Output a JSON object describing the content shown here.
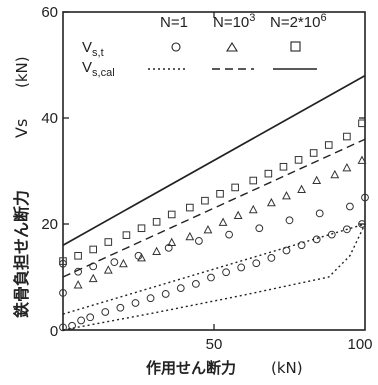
{
  "chart_data": {
    "type": "scatter",
    "xlabel": "作用せん断力",
    "xunit": "(kN)",
    "ylabel_jp": "鉄骨負担せん断力",
    "ylabel_sym": "Vs",
    "yunit": "(kN)",
    "xlim": [
      0,
      100
    ],
    "ylim": [
      0,
      60
    ],
    "xticks": [
      "0",
      "50",
      "100"
    ],
    "yticks": [
      "0",
      "20",
      "40",
      "60"
    ],
    "grid": false,
    "legend": {
      "columns": [
        "N=1",
        "N=10",
        "N=2*10"
      ],
      "column_exponents": [
        "",
        "3",
        "6"
      ],
      "row_labels": [
        "V",
        "V"
      ],
      "row_subscripts": [
        "s,t",
        "s,cal"
      ],
      "markers": [
        "circle",
        "triangle",
        "square"
      ],
      "line_styles": [
        "dotted",
        "dashed",
        "solid"
      ],
      "placement": "top"
    },
    "series": [
      {
        "name": "N=1",
        "kind": "points",
        "marker": "circle",
        "points": [
          [
            0,
            0.5
          ],
          [
            3,
            0.8
          ],
          [
            6,
            1.8
          ],
          [
            9,
            2.4
          ],
          [
            14,
            3.4
          ],
          [
            19,
            4.2
          ],
          [
            24,
            5.1
          ],
          [
            29,
            6
          ],
          [
            34,
            6.8
          ],
          [
            39,
            7.9
          ],
          [
            44,
            8.7
          ],
          [
            49,
            9.9
          ],
          [
            54,
            10.9
          ],
          [
            59,
            11.8
          ],
          [
            64,
            12.6
          ],
          [
            69,
            13.6
          ],
          [
            74,
            15
          ],
          [
            79,
            16
          ],
          [
            84,
            17.1
          ],
          [
            89,
            18
          ],
          [
            94,
            19
          ],
          [
            99,
            20
          ],
          [
            0,
            7
          ],
          [
            0,
            12.5
          ],
          [
            5,
            11
          ],
          [
            10,
            12
          ],
          [
            17,
            12.8
          ],
          [
            25,
            14
          ],
          [
            35,
            15.5
          ],
          [
            45,
            16.8
          ],
          [
            55,
            18
          ],
          [
            65,
            19.2
          ],
          [
            75,
            20.7
          ],
          [
            85,
            22
          ],
          [
            95,
            23.3
          ],
          [
            100,
            25
          ]
        ]
      },
      {
        "name": "N=10^3",
        "kind": "points",
        "marker": "triangle",
        "points": [
          [
            5,
            8.5
          ],
          [
            10,
            9.7
          ],
          [
            15,
            11.3
          ],
          [
            20,
            12.5
          ],
          [
            26,
            13.6
          ],
          [
            31,
            14.8
          ],
          [
            36,
            16.5
          ],
          [
            42,
            17.6
          ],
          [
            48,
            18.9
          ],
          [
            53,
            20.3
          ],
          [
            58,
            21.6
          ],
          [
            63,
            22.7
          ],
          [
            69,
            24
          ],
          [
            74,
            25.3
          ],
          [
            79,
            26.5
          ],
          [
            84,
            28.2
          ],
          [
            90,
            29.3
          ],
          [
            94,
            30.6
          ],
          [
            99,
            32
          ]
        ]
      },
      {
        "name": "N=2*10^6",
        "kind": "points",
        "marker": "square",
        "points": [
          [
            0,
            13
          ],
          [
            5,
            14
          ],
          [
            10,
            15.2
          ],
          [
            15,
            16.6
          ],
          [
            21,
            17.9
          ],
          [
            26,
            19.2
          ],
          [
            31,
            20.4
          ],
          [
            36,
            21.8
          ],
          [
            42,
            23.1
          ],
          [
            47,
            24.4
          ],
          [
            52,
            25.7
          ],
          [
            57,
            26.9
          ],
          [
            63,
            28.2
          ],
          [
            68,
            29.5
          ],
          [
            73,
            30.8
          ],
          [
            78,
            32.1
          ],
          [
            83,
            33.4
          ],
          [
            88,
            34.9
          ],
          [
            94,
            36.5
          ],
          [
            99,
            39
          ]
        ]
      },
      {
        "name": "V_s,cal N=1 (lower)",
        "kind": "line",
        "style": "dotted",
        "points": [
          [
            0,
            0
          ],
          [
            30,
            3.2
          ],
          [
            60,
            6.6
          ],
          [
            88,
            10
          ],
          [
            95,
            14
          ],
          [
            100,
            20
          ]
        ]
      },
      {
        "name": "V_s,cal N=1 (upper)",
        "kind": "line",
        "style": "dotted",
        "points": [
          [
            0,
            3
          ],
          [
            100,
            20
          ]
        ]
      },
      {
        "name": "V_s,cal N=10^3",
        "kind": "line",
        "style": "dashed",
        "points": [
          [
            0,
            10
          ],
          [
            100,
            36
          ]
        ]
      },
      {
        "name": "V_s,cal N=2*10^6",
        "kind": "line",
        "style": "solid",
        "points": [
          [
            0,
            16
          ],
          [
            100,
            48
          ]
        ]
      }
    ]
  }
}
